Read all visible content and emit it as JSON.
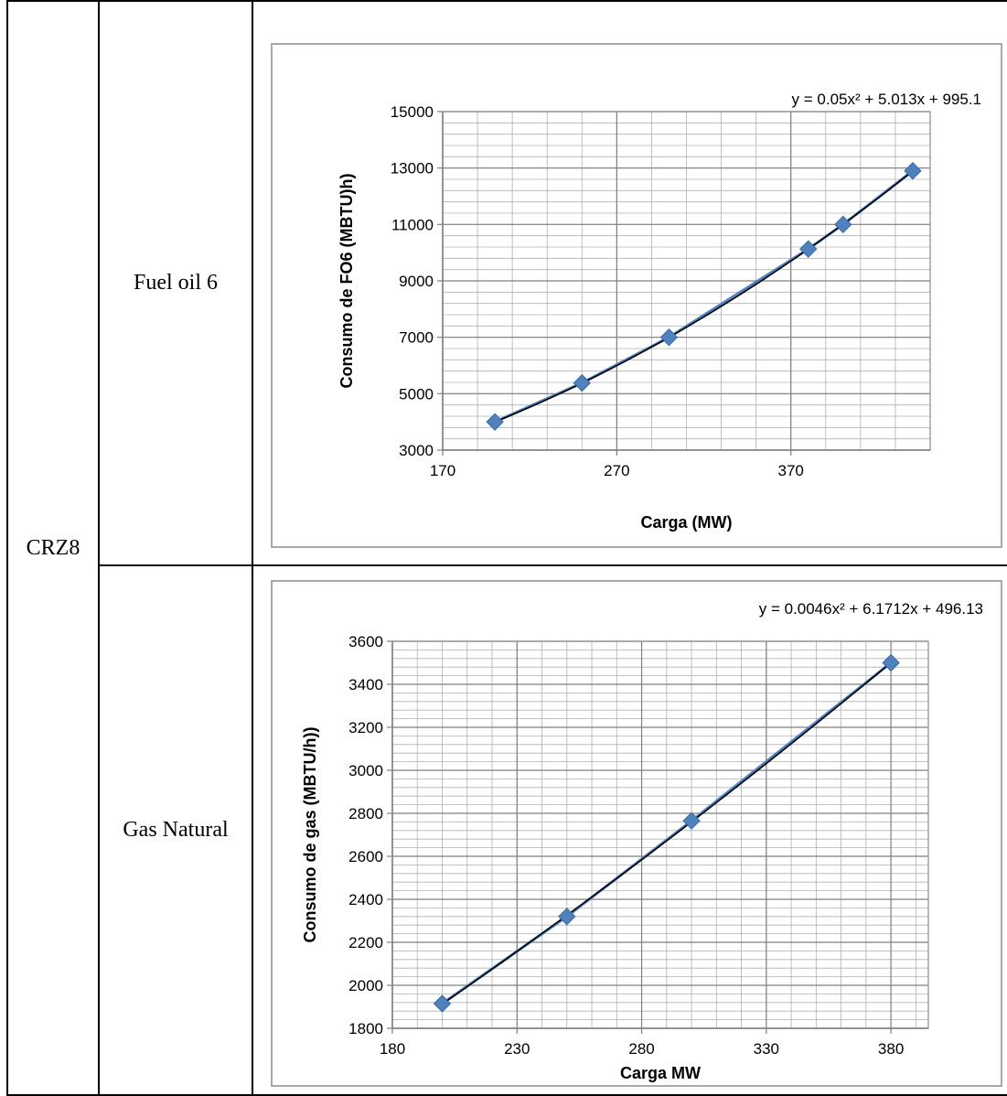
{
  "table": {
    "unit_label": "CRZ8",
    "rows": [
      {
        "fuel": "Fuel oil 6"
      },
      {
        "fuel": "Gas Natural"
      }
    ]
  },
  "colors": {
    "marker": "#4F81BD",
    "trendline": "#000000",
    "grid_major": "#7f7f7f",
    "grid_minor": "#b0b0b0",
    "chart_border": "#8c8c8c"
  },
  "chart_data": [
    {
      "type": "scatter",
      "title": "",
      "xlabel": "Carga (MW)",
      "ylabel": "Consumo de FO6 (MBTU)h)",
      "equation": "y = 0.05x² + 5.013x + 995.1",
      "xlim": [
        170,
        450
      ],
      "ylim": [
        3000,
        15000
      ],
      "x_ticks": [
        170,
        270,
        370
      ],
      "y_ticks": [
        3000,
        5000,
        7000,
        9000,
        11000,
        13000,
        15000
      ],
      "trendline": {
        "type": "polynomial",
        "order": 2
      },
      "grid": true,
      "series": [
        {
          "x": [
            200,
            250,
            300,
            380,
            400,
            440
          ],
          "y": [
            4000,
            5380,
            7000,
            10130,
            11000,
            12900
          ]
        }
      ]
    },
    {
      "type": "scatter",
      "title": "",
      "xlabel": "Carga MW",
      "ylabel": "Consumo de gas (MBTU/h))",
      "equation": "y = 0.0046x² + 6.1712x + 496.13",
      "xlim": [
        180,
        395
      ],
      "ylim": [
        1800,
        3600
      ],
      "x_ticks": [
        180,
        230,
        280,
        330,
        380
      ],
      "y_ticks": [
        1800,
        2000,
        2200,
        2400,
        2600,
        2800,
        3000,
        3200,
        3400,
        3600
      ],
      "trendline": {
        "type": "polynomial",
        "order": 2
      },
      "grid": true,
      "series": [
        {
          "x": [
            200,
            250,
            300,
            380
          ],
          "y": [
            1915,
            2320,
            2765,
            3500
          ]
        }
      ]
    }
  ]
}
